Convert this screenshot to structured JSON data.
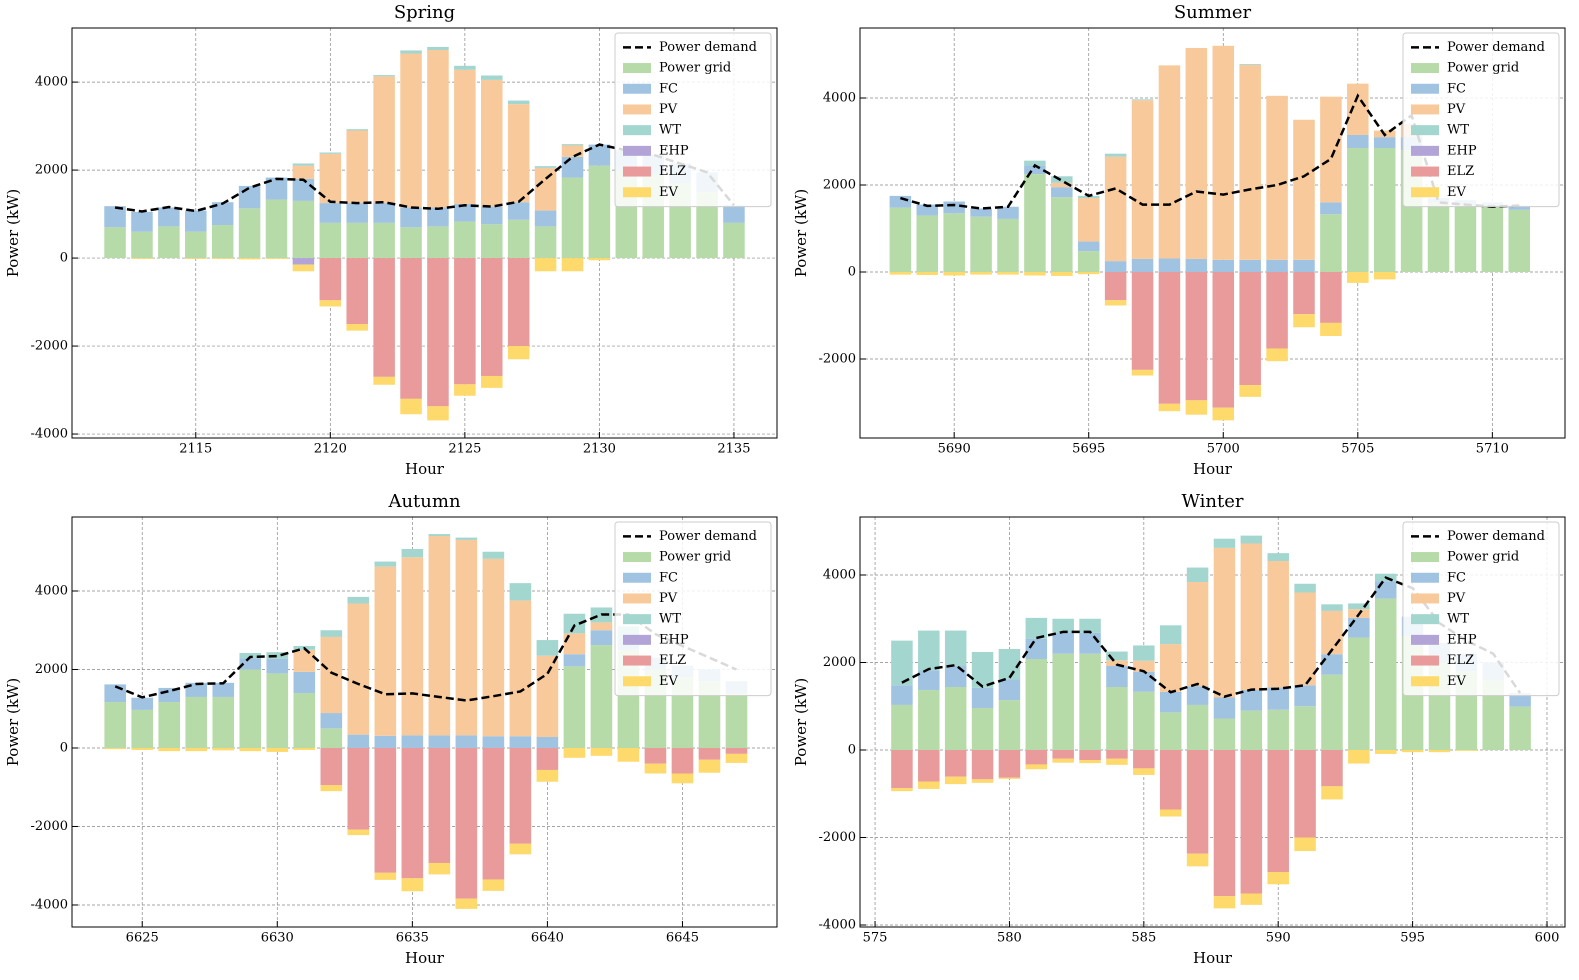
{
  "chart_data": [
    {
      "type": "bar",
      "title": "Spring",
      "xlabel": "Hour",
      "ylabel": "Power (kW)",
      "stacked": true,
      "grid": true,
      "legend": "upper right",
      "x": [
        2112,
        2113,
        2114,
        2115,
        2116,
        2117,
        2118,
        2119,
        2120,
        2121,
        2122,
        2123,
        2124,
        2125,
        2126,
        2127,
        2128,
        2129,
        2130,
        2131,
        2132,
        2133,
        2134,
        2135
      ],
      "xlim": [
        2110.4,
        2136.6
      ],
      "xticks": [
        2115,
        2120,
        2125,
        2130,
        2135
      ],
      "ylim": [
        -4090,
        5230
      ],
      "yticks": [
        -4000,
        -2000,
        0,
        2000,
        4000
      ],
      "line": {
        "name": "Power demand",
        "color": "#000000",
        "values": [
          1150,
          1060,
          1160,
          1070,
          1240,
          1600,
          1800,
          1780,
          1280,
          1250,
          1270,
          1150,
          1120,
          1200,
          1170,
          1280,
          1800,
          2300,
          2580,
          2450,
          2350,
          2150,
          1950,
          1200
        ]
      },
      "series": [
        {
          "name": "Power grid",
          "color": "#b6dba9",
          "values": [
            700,
            600,
            720,
            600,
            750,
            1130,
            1330,
            1300,
            800,
            800,
            800,
            700,
            720,
            830,
            770,
            870,
            720,
            1830,
            2100,
            2000,
            1900,
            1700,
            1500,
            800
          ]
        },
        {
          "name": "FC",
          "color": "#a1c3e2",
          "values": [
            480,
            450,
            430,
            480,
            520,
            510,
            500,
            500,
            450,
            450,
            450,
            450,
            430,
            400,
            400,
            400,
            360,
            470,
            480,
            450,
            450,
            450,
            450,
            400
          ]
        },
        {
          "name": "PV",
          "color": "#f8ca9b",
          "values": [
            0,
            0,
            0,
            0,
            0,
            0,
            0,
            300,
            1120,
            1650,
            2880,
            3500,
            3580,
            3050,
            2880,
            2230,
            970,
            260,
            0,
            0,
            0,
            0,
            0,
            0
          ]
        },
        {
          "name": "WT",
          "color": "#a4d6d0",
          "values": [
            0,
            0,
            0,
            0,
            0,
            0,
            0,
            50,
            30,
            30,
            30,
            70,
            70,
            90,
            100,
            80,
            40,
            30,
            0,
            0,
            0,
            0,
            0,
            0
          ]
        },
        {
          "name": "EHP",
          "color": "#b3a4d8",
          "values": [
            0,
            0,
            0,
            0,
            0,
            0,
            0,
            -150,
            0,
            0,
            0,
            0,
            0,
            0,
            0,
            0,
            0,
            0,
            0,
            0,
            0,
            0,
            0,
            0
          ]
        },
        {
          "name": "ELZ",
          "color": "#e99a9b",
          "values": [
            0,
            0,
            0,
            0,
            0,
            0,
            0,
            0,
            -960,
            -1500,
            -2700,
            -3200,
            -3370,
            -2870,
            -2680,
            -2000,
            0,
            0,
            0,
            0,
            0,
            0,
            0,
            0
          ]
        },
        {
          "name": "EV",
          "color": "#fed96b",
          "values": [
            0,
            -20,
            0,
            -20,
            -20,
            -30,
            -20,
            -150,
            -140,
            -150,
            -180,
            -350,
            -320,
            -260,
            -270,
            -300,
            -300,
            -300,
            -50,
            0,
            0,
            0,
            0,
            0
          ]
        }
      ]
    },
    {
      "type": "bar",
      "title": "Summer",
      "xlabel": "Hour",
      "ylabel": "Power (kW)",
      "stacked": true,
      "grid": true,
      "legend": "upper right",
      "x": [
        5688,
        5689,
        5690,
        5691,
        5692,
        5693,
        5694,
        5695,
        5696,
        5697,
        5698,
        5699,
        5700,
        5701,
        5702,
        5703,
        5704,
        5705,
        5706,
        5707,
        5708,
        5709,
        5710,
        5711
      ],
      "xlim": [
        5686.5,
        5712.7
      ],
      "xticks": [
        5690,
        5695,
        5700,
        5705,
        5710
      ],
      "ylim": [
        -3816,
        5609
      ],
      "yticks": [
        -2000,
        0,
        2000,
        4000
      ],
      "line": {
        "name": "Power demand",
        "color": "#000000",
        "values": [
          1700,
          1520,
          1540,
          1460,
          1500,
          2450,
          2100,
          1750,
          1920,
          1550,
          1550,
          1850,
          1780,
          1900,
          2000,
          2200,
          2600,
          4050,
          3150,
          3600,
          1600,
          1550,
          1500,
          1530
        ]
      },
      "series": [
        {
          "name": "Power grid",
          "color": "#b6dba9",
          "values": [
            1480,
            1300,
            1350,
            1270,
            1220,
            2250,
            1720,
            480,
            0,
            0,
            0,
            0,
            0,
            0,
            0,
            0,
            1330,
            2850,
            2850,
            2800,
            1600,
            1550,
            1500,
            1430
          ]
        },
        {
          "name": "FC",
          "color": "#a1c3e2",
          "values": [
            270,
            250,
            270,
            190,
            280,
            200,
            230,
            220,
            250,
            300,
            310,
            300,
            280,
            280,
            280,
            280,
            270,
            300,
            250,
            300,
            100,
            100,
            100,
            100
          ]
        },
        {
          "name": "PV",
          "color": "#f8ca9b",
          "values": [
            0,
            0,
            0,
            0,
            0,
            0,
            100,
            1000,
            2400,
            3650,
            4440,
            4850,
            4920,
            4480,
            3770,
            3220,
            2430,
            1180,
            150,
            300,
            0,
            0,
            0,
            0
          ]
        },
        {
          "name": "WT",
          "color": "#a4d6d0",
          "values": [
            0,
            0,
            0,
            0,
            0,
            110,
            150,
            50,
            70,
            20,
            0,
            0,
            0,
            20,
            0,
            0,
            0,
            0,
            0,
            0,
            0,
            0,
            0,
            0
          ]
        },
        {
          "name": "EHP",
          "color": "#b3a4d8",
          "values": [
            0,
            0,
            0,
            0,
            0,
            0,
            0,
            0,
            0,
            0,
            0,
            0,
            0,
            0,
            0,
            0,
            0,
            0,
            0,
            0,
            0,
            0,
            0,
            0
          ]
        },
        {
          "name": "ELZ",
          "color": "#e99a9b",
          "values": [
            0,
            0,
            0,
            0,
            0,
            0,
            0,
            0,
            -650,
            -2250,
            -3030,
            -2950,
            -3120,
            -2600,
            -1760,
            -970,
            -1170,
            0,
            0,
            0,
            0,
            0,
            0,
            0
          ]
        },
        {
          "name": "EV",
          "color": "#fed96b",
          "values": [
            -60,
            -70,
            -80,
            -60,
            -60,
            -80,
            -90,
            -50,
            -120,
            -130,
            -170,
            -330,
            -290,
            -270,
            -290,
            -300,
            -300,
            -250,
            -170,
            0,
            0,
            0,
            0,
            0
          ]
        }
      ]
    },
    {
      "type": "bar",
      "title": "Autumn",
      "xlabel": "Hour",
      "ylabel": "Power (kW)",
      "stacked": true,
      "grid": true,
      "legend": "upper right",
      "x": [
        6624,
        6625,
        6626,
        6627,
        6628,
        6629,
        6630,
        6631,
        6632,
        6633,
        6634,
        6635,
        6636,
        6637,
        6638,
        6639,
        6640,
        6641,
        6642,
        6643,
        6644,
        6645,
        6646,
        6647
      ],
      "xlim": [
        6622.4,
        6648.5
      ],
      "xticks": [
        6625,
        6630,
        6635,
        6640,
        6645
      ],
      "ylim": [
        -4561,
        5885
      ],
      "yticks": [
        -4000,
        -2000,
        0,
        2000,
        4000
      ],
      "line": {
        "name": "Power demand",
        "color": "#000000",
        "values": [
          1570,
          1290,
          1450,
          1630,
          1650,
          2320,
          2340,
          2540,
          1920,
          1630,
          1370,
          1390,
          1300,
          1210,
          1320,
          1440,
          1890,
          3120,
          3400,
          3400,
          2900,
          2600,
          2300,
          2000
        ]
      },
      "series": [
        {
          "name": "Power grid",
          "color": "#b6dba9",
          "values": [
            1170,
            970,
            1170,
            1300,
            1300,
            2000,
            1900,
            1400,
            500,
            0,
            0,
            0,
            0,
            0,
            0,
            0,
            0,
            2080,
            2620,
            2500,
            2000,
            1800,
            1700,
            1400
          ]
        },
        {
          "name": "FC",
          "color": "#a1c3e2",
          "values": [
            450,
            310,
            360,
            360,
            360,
            290,
            370,
            540,
            390,
            340,
            310,
            320,
            320,
            320,
            300,
            300,
            280,
            310,
            380,
            300,
            300,
            300,
            300,
            300
          ]
        },
        {
          "name": "PV",
          "color": "#f8ca9b",
          "values": [
            0,
            0,
            0,
            0,
            0,
            0,
            0,
            560,
            1940,
            3340,
            4310,
            4540,
            5080,
            4980,
            4520,
            3460,
            2070,
            530,
            200,
            0,
            0,
            0,
            0,
            0
          ]
        },
        {
          "name": "WT",
          "color": "#a4d6d0",
          "values": [
            0,
            0,
            0,
            0,
            0,
            130,
            170,
            100,
            170,
            170,
            130,
            210,
            50,
            60,
            180,
            440,
            400,
            500,
            380,
            300,
            0,
            0,
            0,
            0
          ]
        },
        {
          "name": "EHP",
          "color": "#b3a4d8",
          "values": [
            0,
            0,
            0,
            0,
            0,
            0,
            0,
            0,
            0,
            0,
            0,
            0,
            0,
            0,
            0,
            0,
            0,
            0,
            0,
            0,
            0,
            0,
            0,
            0
          ]
        },
        {
          "name": "ELZ",
          "color": "#e99a9b",
          "values": [
            0,
            0,
            0,
            0,
            0,
            0,
            0,
            0,
            -950,
            -2080,
            -3180,
            -3320,
            -2930,
            -3840,
            -3350,
            -2440,
            -560,
            0,
            0,
            0,
            -400,
            -650,
            -300,
            -150
          ]
        },
        {
          "name": "EV",
          "color": "#fed96b",
          "values": [
            -30,
            -50,
            -80,
            -80,
            -60,
            -80,
            -100,
            -50,
            -150,
            -140,
            -180,
            -330,
            -290,
            -260,
            -290,
            -270,
            -300,
            -250,
            -200,
            -350,
            -250,
            -250,
            -330,
            -230
          ]
        }
      ]
    },
    {
      "type": "bar",
      "title": "Winter",
      "xlabel": "Hour",
      "ylabel": "Power (kW)",
      "stacked": true,
      "grid": true,
      "legend": "upper right",
      "x": [
        576,
        577,
        578,
        579,
        580,
        581,
        582,
        583,
        584,
        585,
        586,
        587,
        588,
        589,
        590,
        591,
        592,
        593,
        594,
        595,
        596,
        597,
        598,
        599
      ],
      "xlim": [
        574.44,
        600.67
      ],
      "xticks": [
        575,
        580,
        585,
        590,
        595,
        600
      ],
      "ylim": [
        -4046,
        5326
      ],
      "yticks": [
        -4000,
        -2000,
        0,
        2000,
        4000
      ],
      "line": {
        "name": "Power demand",
        "color": "#000000",
        "values": [
          1540,
          1850,
          1940,
          1450,
          1650,
          2560,
          2700,
          2700,
          1950,
          1800,
          1320,
          1510,
          1220,
          1380,
          1400,
          1480,
          2290,
          3100,
          3940,
          3700,
          2900,
          2500,
          2200,
          1300
        ]
      },
      "series": [
        {
          "name": "Power grid",
          "color": "#b6dba9",
          "values": [
            1030,
            1370,
            1440,
            960,
            1140,
            2080,
            2200,
            2200,
            1440,
            1330,
            860,
            1030,
            720,
            900,
            920,
            1000,
            1720,
            2570,
            3460,
            2600,
            2000,
            1800,
            1600,
            990
          ]
        },
        {
          "name": "FC",
          "color": "#a1c3e2",
          "values": [
            450,
            450,
            480,
            460,
            480,
            460,
            490,
            480,
            480,
            460,
            470,
            430,
            480,
            470,
            510,
            480,
            470,
            450,
            400,
            450,
            450,
            400,
            400,
            310
          ]
        },
        {
          "name": "PV",
          "color": "#f8ca9b",
          "values": [
            0,
            0,
            0,
            0,
            0,
            0,
            0,
            0,
            130,
            250,
            1090,
            2380,
            3420,
            3350,
            2890,
            2120,
            990,
            200,
            0,
            0,
            0,
            0,
            0,
            0
          ]
        },
        {
          "name": "WT",
          "color": "#a4d6d0",
          "values": [
            1020,
            910,
            810,
            820,
            690,
            480,
            310,
            320,
            200,
            350,
            430,
            330,
            210,
            180,
            180,
            200,
            150,
            130,
            170,
            0,
            0,
            0,
            0,
            0
          ]
        },
        {
          "name": "EHP",
          "color": "#b3a4d8",
          "values": [
            0,
            0,
            0,
            0,
            0,
            0,
            0,
            0,
            0,
            0,
            0,
            0,
            0,
            0,
            0,
            0,
            0,
            0,
            0,
            0,
            0,
            0,
            0,
            0
          ]
        },
        {
          "name": "ELZ",
          "color": "#e99a9b",
          "values": [
            -870,
            -720,
            -610,
            -670,
            -630,
            -330,
            -200,
            -230,
            -200,
            -420,
            -1360,
            -2370,
            -3340,
            -3280,
            -2790,
            -2000,
            -830,
            0,
            0,
            0,
            0,
            0,
            0,
            0
          ]
        },
        {
          "name": "EV",
          "color": "#fed96b",
          "values": [
            -70,
            -170,
            -170,
            -80,
            -30,
            -110,
            -90,
            -70,
            -140,
            -150,
            -160,
            -290,
            -280,
            -260,
            -280,
            -310,
            -300,
            -310,
            -90,
            -50,
            -50,
            -20,
            0,
            0
          ]
        }
      ]
    }
  ]
}
